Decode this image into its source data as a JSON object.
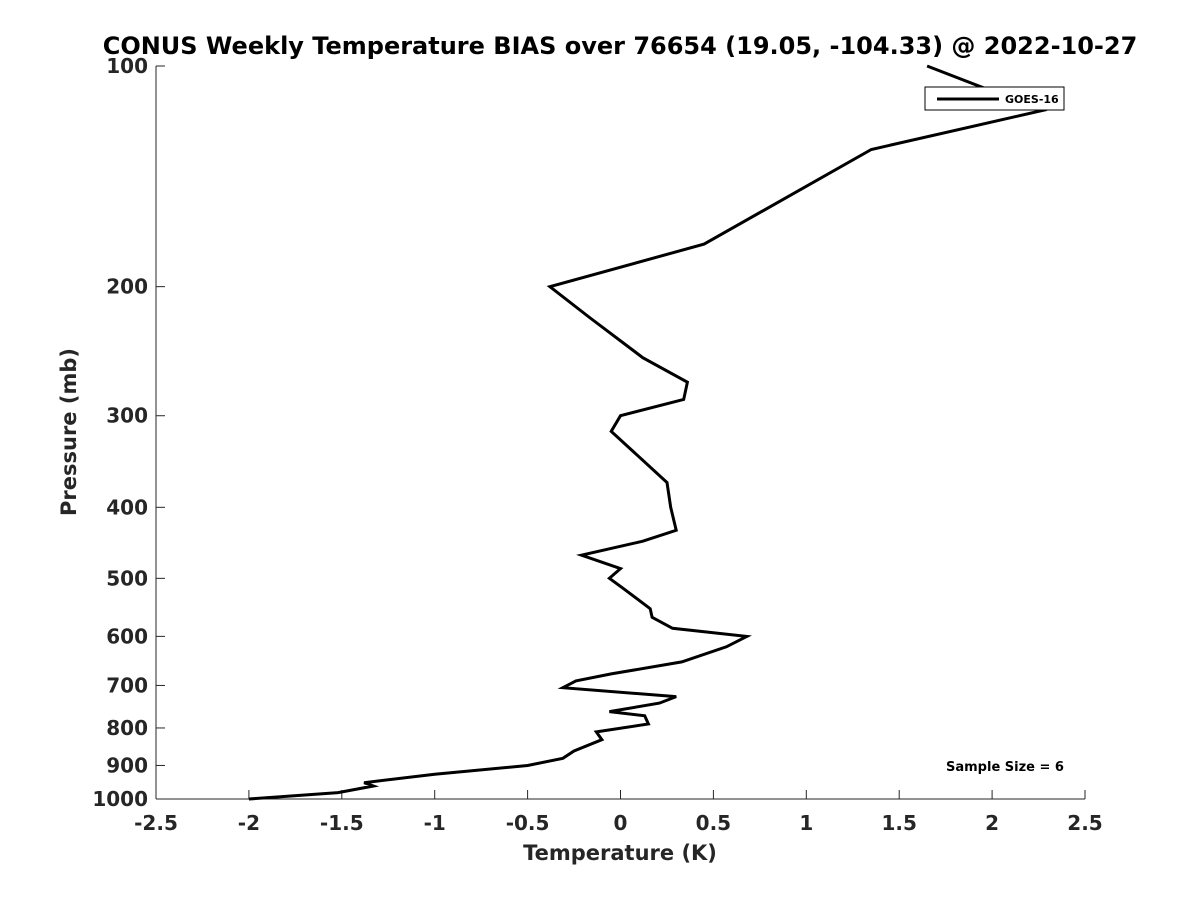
{
  "chart_data": {
    "type": "line",
    "title": "CONUS Weekly Temperature BIAS over 76654 (19.05, -104.33) @ 2022-10-27",
    "xlabel": "Temperature (K)",
    "ylabel": "Pressure (mb)",
    "xlim": [
      -2.5,
      2.5
    ],
    "ylim": [
      1000,
      100
    ],
    "yscale": "log",
    "y_reversed": true,
    "x_ticks": [
      "-2.5",
      "-2",
      "-1.5",
      "-1",
      "-0.5",
      "0",
      "0.5",
      "1",
      "1.5",
      "2",
      "2.5"
    ],
    "y_ticks": [
      "100",
      "200",
      "300",
      "400",
      "500",
      "600",
      "700",
      "800",
      "900",
      "1000"
    ],
    "grid": false,
    "legend_position": "top-right",
    "series": [
      {
        "name": "GOES-16",
        "color": "#000000",
        "x": [
          1.65,
          2.27,
          1.35,
          0.45,
          -0.38,
          -0.17,
          0.12,
          0.36,
          0.34,
          0.0,
          -0.05,
          0.25,
          0.27,
          0.3,
          0.12,
          -0.21,
          0.0,
          -0.06,
          0.01,
          0.16,
          0.17,
          0.28,
          0.68,
          0.57,
          0.33,
          -0.05,
          -0.24,
          -0.31,
          0.3,
          0.21,
          -0.06,
          0.13,
          0.15,
          -0.13,
          -0.1,
          -0.25,
          -0.31,
          -0.5,
          -1.0,
          -1.38,
          -1.33,
          -1.52,
          -2.0
        ],
        "y": [
          100,
          115,
          130,
          175,
          200,
          220,
          250,
          270,
          285,
          300,
          315,
          370,
          400,
          430,
          445,
          465,
          485,
          500,
          515,
          550,
          565,
          585,
          600,
          620,
          650,
          675,
          690,
          705,
          725,
          740,
          760,
          770,
          790,
          810,
          830,
          860,
          880,
          900,
          925,
          950,
          960,
          980,
          1000
        ]
      }
    ],
    "annotations": [
      "Sample Size = 6"
    ]
  }
}
